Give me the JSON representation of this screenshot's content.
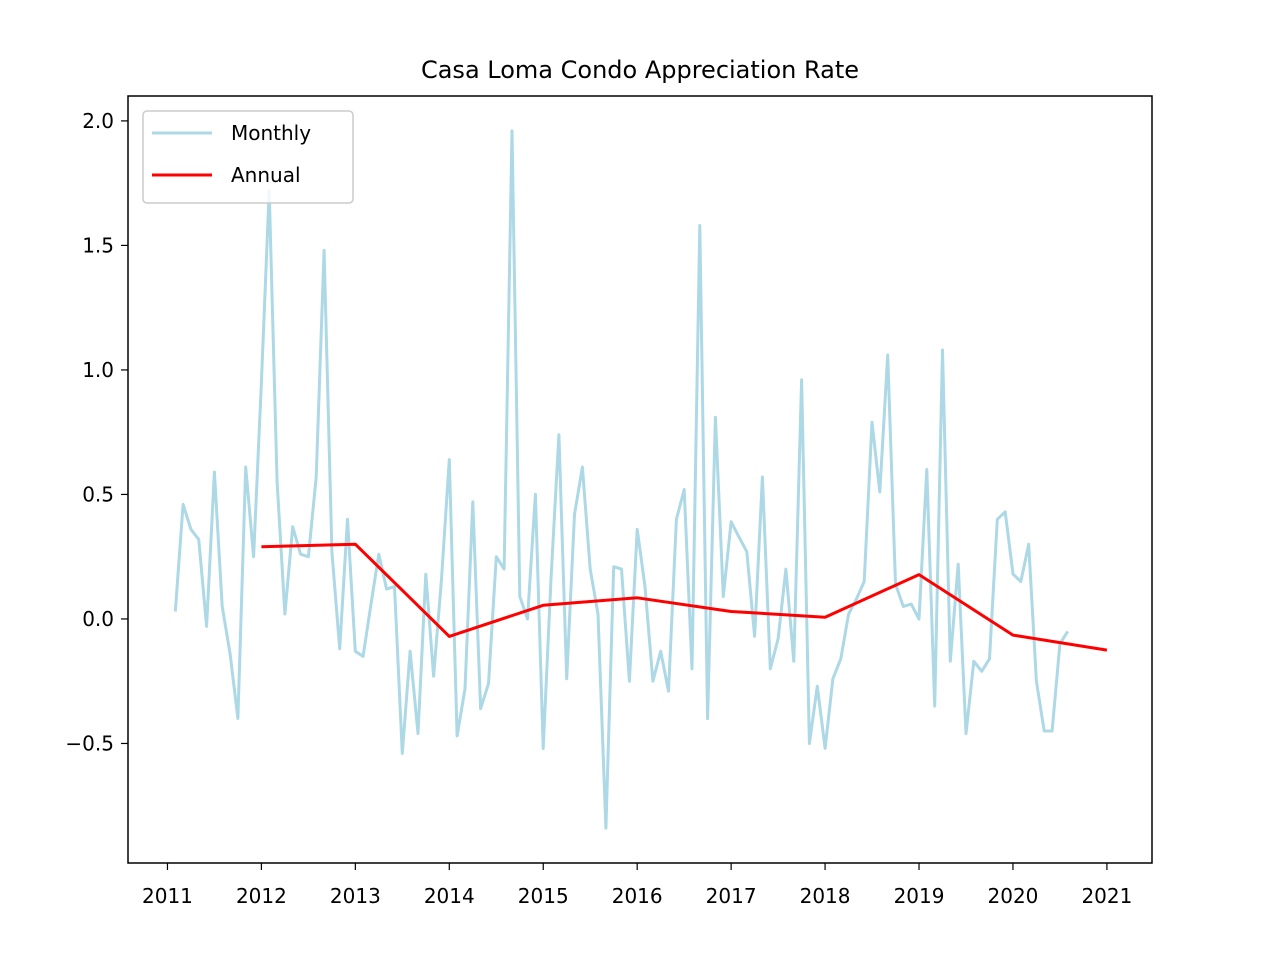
{
  "chart_data": {
    "type": "line",
    "title": "Casa Loma Condo Appreciation Rate",
    "xlabel": "",
    "ylabel": "",
    "xlim": [
      2010.58,
      2021.48
    ],
    "ylim": [
      -0.98,
      2.1
    ],
    "x_ticks": [
      2011,
      2012,
      2013,
      2014,
      2015,
      2016,
      2017,
      2018,
      2019,
      2020,
      2021
    ],
    "x_tick_labels": [
      "2011",
      "2012",
      "2013",
      "2014",
      "2015",
      "2016",
      "2017",
      "2018",
      "2019",
      "2020",
      "2021"
    ],
    "y_ticks": [
      -0.5,
      0.0,
      0.5,
      1.0,
      1.5,
      2.0
    ],
    "y_tick_labels": [
      "−0.5",
      "0.0",
      "0.5",
      "1.0",
      "1.5",
      "2.0"
    ],
    "grid": false,
    "legend_position": "top-left",
    "series": [
      {
        "name": "Monthly",
        "color": "#add8e6",
        "x": [
          2011.083,
          2011.167,
          2011.25,
          2011.333,
          2011.417,
          2011.5,
          2011.583,
          2011.667,
          2011.75,
          2011.833,
          2011.917,
          2012.0,
          2012.083,
          2012.167,
          2012.25,
          2012.333,
          2012.417,
          2012.5,
          2012.583,
          2012.667,
          2012.75,
          2012.833,
          2012.917,
          2013.0,
          2013.083,
          2013.167,
          2013.25,
          2013.333,
          2013.417,
          2013.5,
          2013.583,
          2013.667,
          2013.75,
          2013.833,
          2013.917,
          2014.0,
          2014.083,
          2014.167,
          2014.25,
          2014.333,
          2014.417,
          2014.5,
          2014.583,
          2014.667,
          2014.75,
          2014.833,
          2014.917,
          2015.0,
          2015.083,
          2015.167,
          2015.25,
          2015.333,
          2015.417,
          2015.5,
          2015.583,
          2015.667,
          2015.75,
          2015.833,
          2015.917,
          2016.0,
          2016.083,
          2016.167,
          2016.25,
          2016.333,
          2016.417,
          2016.5,
          2016.583,
          2016.667,
          2016.75,
          2016.833,
          2016.917,
          2017.0,
          2017.083,
          2017.167,
          2017.25,
          2017.333,
          2017.417,
          2017.5,
          2017.583,
          2017.667,
          2017.75,
          2017.833,
          2017.917,
          2018.0,
          2018.083,
          2018.167,
          2018.25,
          2018.333,
          2018.417,
          2018.5,
          2018.583,
          2018.667,
          2018.75,
          2018.833,
          2018.917,
          2019.0,
          2019.083,
          2019.167,
          2019.25,
          2019.333,
          2019.417,
          2019.5,
          2019.583,
          2019.667,
          2019.75,
          2019.833,
          2019.917,
          2020.0,
          2020.083,
          2020.167,
          2020.25,
          2020.333,
          2020.417,
          2020.5,
          2020.583
        ],
        "values": [
          0.03,
          0.46,
          0.36,
          0.32,
          -0.03,
          0.59,
          0.05,
          -0.14,
          -0.4,
          0.61,
          0.25,
          0.95,
          1.72,
          0.55,
          0.02,
          0.37,
          0.26,
          0.25,
          0.57,
          1.48,
          0.27,
          -0.12,
          0.4,
          -0.13,
          -0.15,
          0.06,
          0.26,
          0.12,
          0.13,
          -0.54,
          -0.13,
          -0.46,
          0.18,
          -0.23,
          0.16,
          0.64,
          -0.47,
          -0.28,
          0.47,
          -0.36,
          -0.26,
          0.25,
          0.2,
          1.96,
          0.09,
          0.0,
          0.5,
          -0.52,
          0.16,
          0.74,
          -0.24,
          0.42,
          0.61,
          0.2,
          0.02,
          -0.84,
          0.21,
          0.2,
          -0.25,
          0.36,
          0.13,
          -0.25,
          -0.13,
          -0.29,
          0.4,
          0.52,
          -0.2,
          1.58,
          -0.4,
          0.81,
          0.09,
          0.39,
          0.33,
          0.27,
          -0.07,
          0.57,
          -0.2,
          -0.08,
          0.2,
          -0.17,
          0.96,
          -0.5,
          -0.27,
          -0.52,
          -0.24,
          -0.16,
          0.02,
          0.08,
          0.15,
          0.79,
          0.51,
          1.06,
          0.14,
          0.05,
          0.06,
          0.0,
          0.6,
          -0.35,
          1.08,
          -0.17,
          0.22,
          -0.46,
          -0.17,
          -0.21,
          -0.16,
          0.4,
          0.43,
          0.18,
          0.15,
          0.3,
          -0.25,
          -0.45,
          -0.45,
          -0.1,
          -0.05
        ]
      },
      {
        "name": "Annual",
        "color": "#ff0000",
        "x": [
          2012,
          2013,
          2014,
          2015,
          2016,
          2017,
          2018,
          2019,
          2020,
          2021
        ],
        "values": [
          0.29,
          0.3,
          -0.07,
          0.055,
          0.085,
          0.03,
          0.007,
          0.178,
          -0.065,
          -0.125
        ]
      }
    ]
  }
}
